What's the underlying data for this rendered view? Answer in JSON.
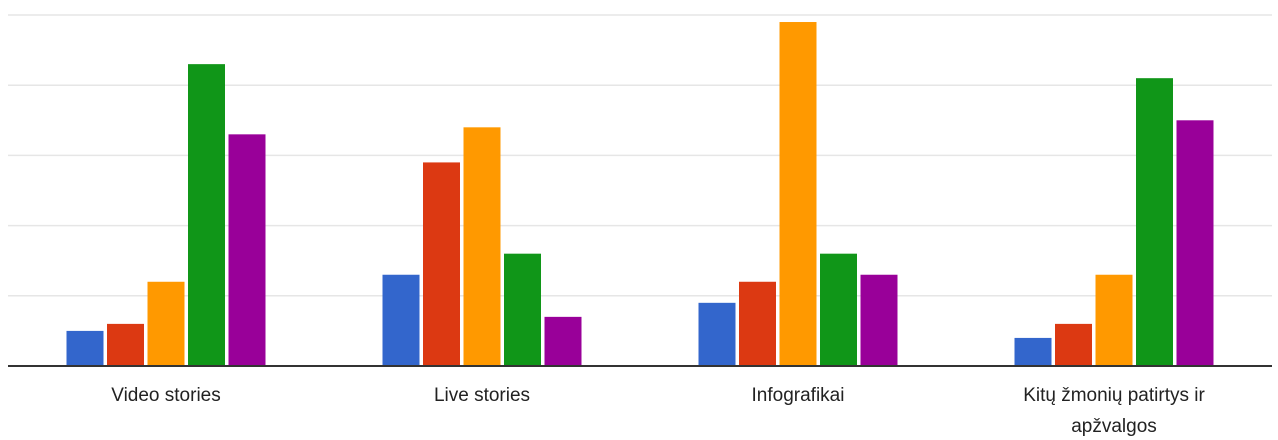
{
  "chart_data": {
    "type": "bar",
    "categories": [
      "Video stories",
      "Live stories",
      "Infografikai",
      "Kitų žmonių patirtys ir apžvalgos"
    ],
    "category_lines": [
      [
        "Video stories"
      ],
      [
        "Live stories"
      ],
      [
        "Infografikai"
      ],
      [
        "Kitų žmonių patirtys ir",
        "apžvalgos"
      ]
    ],
    "series": [
      {
        "color": "#3366cc",
        "values": [
          5,
          13,
          9,
          4
        ]
      },
      {
        "color": "#dc3912",
        "values": [
          6,
          29,
          12,
          6
        ]
      },
      {
        "color": "#ff9900",
        "values": [
          12,
          34,
          49,
          13
        ]
      },
      {
        "color": "#109618",
        "values": [
          43,
          16,
          16,
          41
        ]
      },
      {
        "color": "#990099",
        "values": [
          33,
          7,
          13,
          35
        ]
      }
    ],
    "ylim": [
      0,
      50
    ],
    "gridlines": [
      10,
      20,
      30,
      40,
      50
    ],
    "grid": true,
    "legend": "none",
    "title": "",
    "xlabel": "",
    "ylabel": ""
  }
}
